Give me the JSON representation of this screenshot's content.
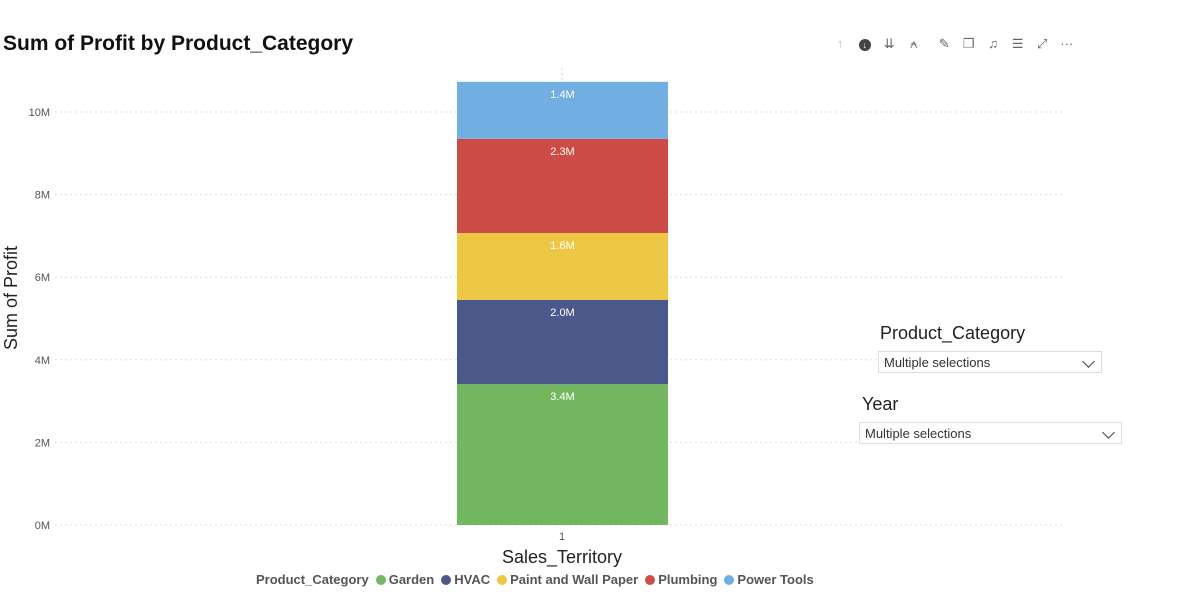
{
  "title": "Sum of Profit by Product_Category",
  "toolbar": {
    "icons": [
      "arrow-up-icon",
      "drill-down-icon",
      "expand-all-icon",
      "hierarchy-icon",
      "pin-icon",
      "copy-icon",
      "bell-icon",
      "filter-icon",
      "focus-icon",
      "more-icon"
    ],
    "glyphs": [
      "↑",
      "↓",
      "⇊",
      "⍲",
      "✎",
      "❐",
      "♫",
      "☰",
      "⤢",
      "···"
    ]
  },
  "slicers": [
    {
      "title": "Product_Category",
      "value": "Multiple selections"
    },
    {
      "title": "Year",
      "value": "Multiple selections"
    }
  ],
  "chart_data": {
    "type": "bar",
    "stacked": true,
    "title": "Sum of Profit by Product_Category",
    "xlabel": "Sales_Territory",
    "ylabel": "Sum of Profit",
    "categories": [
      "1"
    ],
    "ylim": [
      0,
      10.7
    ],
    "yticks": [
      0,
      2,
      4,
      6,
      8,
      10
    ],
    "ytick_labels": [
      "0M",
      "2M",
      "4M",
      "6M",
      "8M",
      "10M"
    ],
    "grid": true,
    "legend_title": "Product_Category",
    "legend_position": "bottom",
    "series": [
      {
        "name": "Garden",
        "values": [
          3.41
        ],
        "label": "3.4M",
        "color": "#73b761"
      },
      {
        "name": "HVAC",
        "values": [
          2.04
        ],
        "label": "2.0M",
        "color": "#4a588a"
      },
      {
        "name": "Paint and Wall Paper",
        "values": [
          1.62
        ],
        "label": "1.6M",
        "color": "#ecc846"
      },
      {
        "name": "Plumbing",
        "values": [
          2.28
        ],
        "label": "2.3M",
        "color": "#cd4c46"
      },
      {
        "name": "Power Tools",
        "values": [
          1.38
        ],
        "label": "1.4M",
        "color": "#71afe2"
      }
    ]
  }
}
